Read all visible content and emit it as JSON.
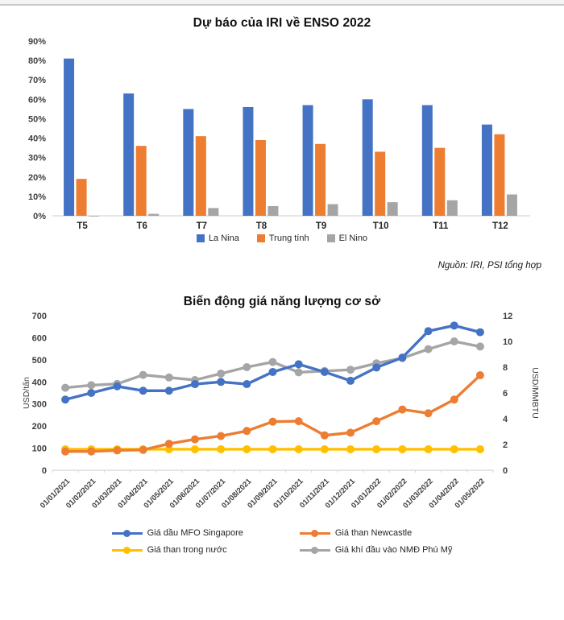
{
  "chart_data": [
    {
      "type": "bar",
      "title": "Dự báo của IRI về ENSO 2022",
      "categories": [
        "T5",
        "T6",
        "T7",
        "T8",
        "T9",
        "T10",
        "T11",
        "T12"
      ],
      "series": [
        {
          "name": "La Nina",
          "color": "#4472C4",
          "values": [
            81,
            63,
            55,
            56,
            57,
            60,
            57,
            47
          ]
        },
        {
          "name": "Trung tính",
          "color": "#ED7D31",
          "values": [
            19,
            36,
            41,
            39,
            37,
            33,
            35,
            42
          ]
        },
        {
          "name": "El Nino",
          "color": "#A5A5A5",
          "values": [
            0,
            1,
            4,
            5,
            6,
            7,
            8,
            11
          ]
        }
      ],
      "ylabel": "",
      "ylim": [
        0,
        90
      ],
      "ytick_step": 10,
      "ytick_format": "percent",
      "grid": false,
      "legend_position": "bottom",
      "source": "Nguồn: IRI, PSI tổng hợp"
    },
    {
      "type": "line",
      "title": "Biến động giá năng lượng cơ sở",
      "x": [
        "01/01/2021",
        "01/02/2021",
        "01/03/2021",
        "01/04/2021",
        "01/05/2021",
        "01/06/2021",
        "01/07/2021",
        "01/08/2021",
        "01/09/2021",
        "01/10/2021",
        "01/11/2021",
        "01/12/2021",
        "01/01/2022",
        "01/02/2022",
        "01/03/2022",
        "01/04/2022",
        "01/05/2022"
      ],
      "ylabel_left": "USD/tấn",
      "ylabel_right": "USD/MMBTU",
      "ylim_left": [
        0,
        700
      ],
      "ytick_step_left": 100,
      "ylim_right": [
        0,
        12
      ],
      "ytick_step_right": 2,
      "grid": false,
      "legend_position": "bottom",
      "series": [
        {
          "name": "Giá dầu MFO Singapore",
          "color": "#4472C4",
          "axis": "left",
          "values": [
            320,
            350,
            380,
            360,
            360,
            390,
            400,
            390,
            445,
            480,
            445,
            405,
            465,
            510,
            630,
            655,
            625
          ]
        },
        {
          "name": "Giá than Newcastle",
          "color": "#ED7D31",
          "axis": "left",
          "values": [
            85,
            85,
            90,
            92,
            120,
            140,
            155,
            178,
            220,
            222,
            158,
            170,
            222,
            275,
            258,
            320,
            430
          ]
        },
        {
          "name": "Giá than trong nước",
          "color": "#FFC000",
          "axis": "left",
          "values": [
            95,
            95,
            95,
            95,
            95,
            95,
            95,
            95,
            95,
            95,
            95,
            95,
            95,
            95,
            95,
            95,
            95
          ]
        },
        {
          "name": "Giá khí đầu vào NMĐ Phú Mỹ",
          "color": "#A5A5A5",
          "axis": "right",
          "values": [
            6.4,
            6.6,
            6.7,
            7.4,
            7.2,
            7.0,
            7.5,
            8.0,
            8.4,
            7.6,
            7.7,
            7.8,
            8.3,
            8.7,
            9.4,
            10.0,
            9.6
          ]
        }
      ]
    }
  ],
  "colors": {
    "axis_line": "#d6d6d6",
    "tick_text": "#3f3f3f"
  }
}
